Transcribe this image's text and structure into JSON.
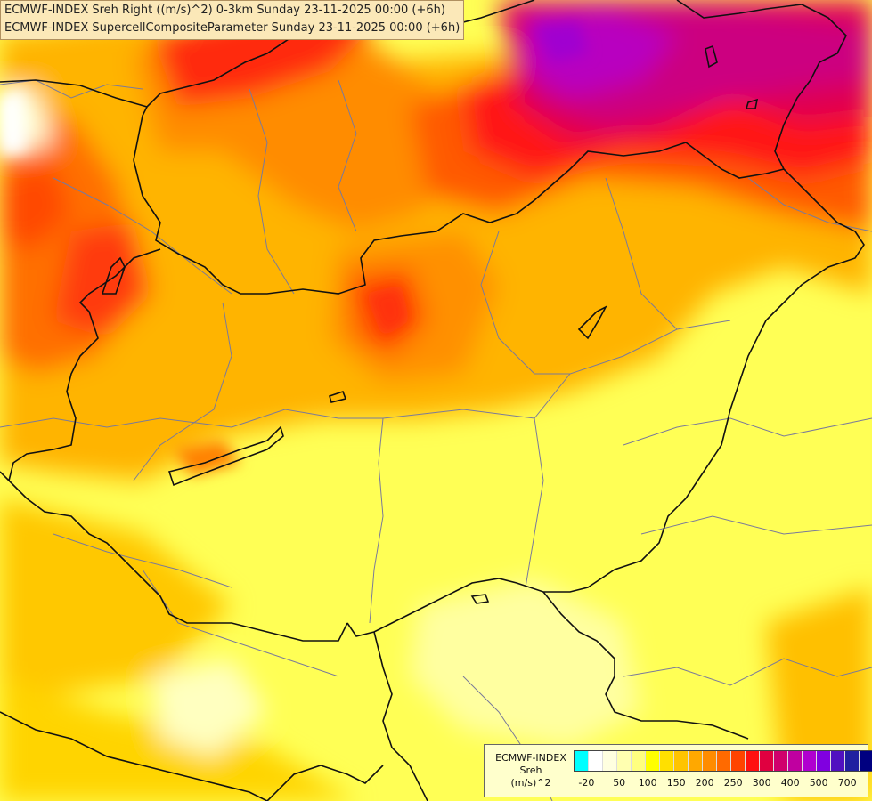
{
  "title": {
    "line1": "ECMWF-INDEX Sreh Right ((m/s)^2) 0-3km Sunday 23-11-2025 00:00 (+6h)",
    "line2": "ECMWF-INDEX SupercellCompositeParameter Sunday 23-11-2025 00:00 (+6h)"
  },
  "legend": {
    "line1": "ECMWF-INDEX",
    "line2": "Sreh",
    "line3": "(m/s)^2",
    "colors": [
      "#00ffff",
      "#ffffff",
      "#ffffe0",
      "#ffffb0",
      "#ffff80",
      "#ffff00",
      "#ffe000",
      "#ffc400",
      "#ffa800",
      "#ff8c00",
      "#ff6a00",
      "#ff4400",
      "#ff1010",
      "#e00040",
      "#d0006c",
      "#c000a0",
      "#b000d0",
      "#8000e0",
      "#5010c0",
      "#2020a0",
      "#000080"
    ],
    "ticks": [
      "-20",
      "50",
      "100",
      "150",
      "200",
      "250",
      "300",
      "400",
      "500",
      "700"
    ]
  }
}
